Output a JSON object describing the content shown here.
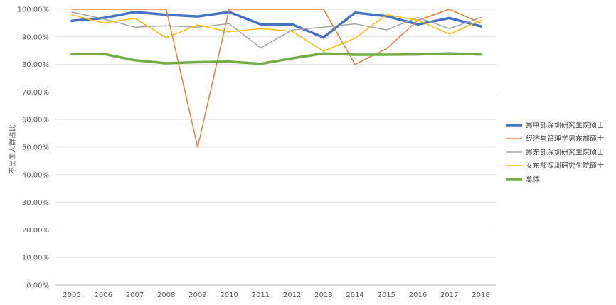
{
  "chart_data": {
    "type": "line",
    "title": "",
    "xlabel": "",
    "ylabel": "不出国人群占比",
    "categories": [
      "2005",
      "2006",
      "2007",
      "2008",
      "2009",
      "2010",
      "2011",
      "2012",
      "2013",
      "2014",
      "2015",
      "2016",
      "2017",
      "2018"
    ],
    "ylim": [
      0,
      1
    ],
    "yticks": [
      "0.00%",
      "10.00%",
      "20.00%",
      "30.00%",
      "40.00%",
      "50.00%",
      "60.00%",
      "70.00%",
      "80.00%",
      "90.00%",
      "100.00%"
    ],
    "grid": "horizontal",
    "legend_position": "right",
    "series": [
      {
        "name": "男中部深圳研究生院硕士",
        "color": "#4472c4",
        "width": "thick",
        "values": [
          0.958,
          0.968,
          0.99,
          0.98,
          0.974,
          0.99,
          0.945,
          0.945,
          0.898,
          0.988,
          0.975,
          0.945,
          0.968,
          0.938
        ]
      },
      {
        "name": "经济与管理学男东部硕士",
        "color": "#ed7d31",
        "width": "thin",
        "values": [
          1.0,
          1.0,
          1.0,
          1.0,
          0.5,
          1.0,
          1.0,
          1.0,
          1.0,
          0.8,
          0.857,
          0.96,
          1.0,
          0.95
        ]
      },
      {
        "name": "男东部深圳研究生院硕士",
        "color": "#a5a5a5",
        "width": "thin",
        "values": [
          0.99,
          0.965,
          0.935,
          0.94,
          0.935,
          0.948,
          0.86,
          0.925,
          0.935,
          0.947,
          0.925,
          0.97,
          0.93,
          0.97
        ]
      },
      {
        "name": "女东部深圳研究生院硕士",
        "color": "#ffc000",
        "width": "thin",
        "values": [
          0.98,
          0.95,
          0.967,
          0.897,
          0.943,
          0.918,
          0.93,
          0.92,
          0.848,
          0.895,
          0.98,
          0.96,
          0.91,
          0.96
        ]
      },
      {
        "name": "总体",
        "color": "#70ad47",
        "width": "thick",
        "values": [
          0.838,
          0.838,
          0.815,
          0.804,
          0.808,
          0.81,
          0.802,
          0.822,
          0.84,
          0.835,
          0.835,
          0.836,
          0.84,
          0.836
        ]
      }
    ]
  }
}
